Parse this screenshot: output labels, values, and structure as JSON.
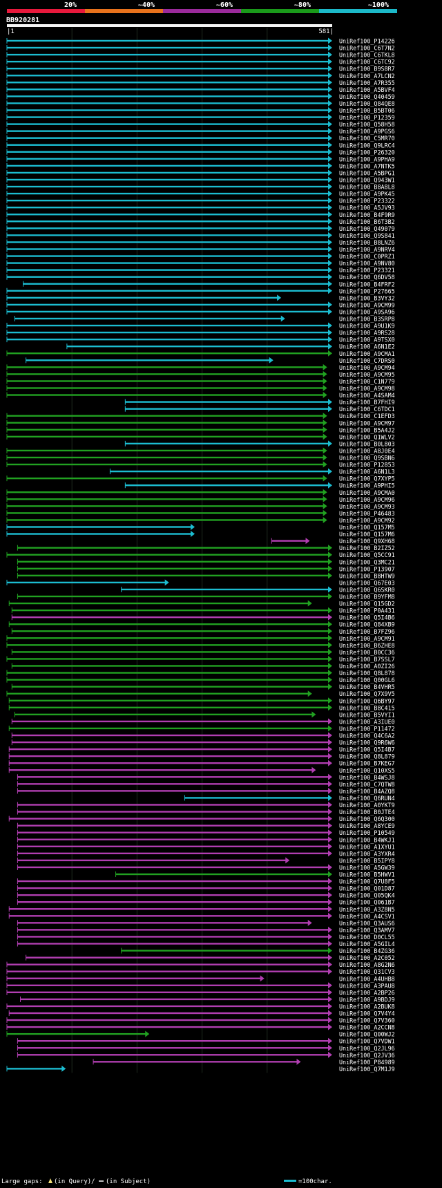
{
  "chart_data": {
    "type": "alignment_overview",
    "query_name": "BB920281",
    "query_start": 1,
    "query_end": 581,
    "ruler_start_label": "1",
    "ruler_end_label": "581",
    "identity_legend": [
      {
        "label": "20%",
        "color": "#e8193c"
      },
      {
        "label": "~40%",
        "color": "#e8721c"
      },
      {
        "label": "~60%",
        "color": "#9b2a9b"
      },
      {
        "label": "~80%",
        "color": "#1a9a1a"
      },
      {
        "label": "~100%",
        "color": "#1cb9c9"
      }
    ],
    "class_colors": {
      "c": "#1cbcd0",
      "g": "#21a121",
      "m": "#b13eb1"
    },
    "footer": {
      "gaps_text": "Large gaps: ",
      "query_gap_text": "(in Query)/",
      "subject_gap_text": "(in Subject)",
      "scale_text": "=100char."
    },
    "hits": [
      {
        "id": "UniRef100_P14226",
        "c": "c",
        "s": 1,
        "e": 581
      },
      {
        "id": "UniRef100_C6T7N2",
        "c": "c",
        "s": 1,
        "e": 581
      },
      {
        "id": "UniRef100_C6TKL8",
        "c": "c",
        "s": 1,
        "e": 581
      },
      {
        "id": "UniRef100_C6TC92",
        "c": "c",
        "s": 1,
        "e": 581
      },
      {
        "id": "UniRef100_B9S8R7",
        "c": "c",
        "s": 1,
        "e": 581
      },
      {
        "id": "UniRef100_A7LCN2",
        "c": "c",
        "s": 1,
        "e": 581
      },
      {
        "id": "UniRef100_A7R355",
        "c": "c",
        "s": 1,
        "e": 581
      },
      {
        "id": "UniRef100_A5BVF4",
        "c": "c",
        "s": 1,
        "e": 581
      },
      {
        "id": "UniRef100_Q40459",
        "c": "c",
        "s": 1,
        "e": 581
      },
      {
        "id": "UniRef100_Q84QE8",
        "c": "c",
        "s": 1,
        "e": 581
      },
      {
        "id": "UniRef100_B5BT06",
        "c": "c",
        "s": 1,
        "e": 581
      },
      {
        "id": "UniRef100_P12359",
        "c": "c",
        "s": 1,
        "e": 581
      },
      {
        "id": "UniRef100_Q58H58",
        "c": "c",
        "s": 1,
        "e": 581
      },
      {
        "id": "UniRef100_A9PGS6",
        "c": "c",
        "s": 1,
        "e": 581
      },
      {
        "id": "UniRef100_C5MR70",
        "c": "c",
        "s": 1,
        "e": 581
      },
      {
        "id": "UniRef100_Q9LRC4",
        "c": "c",
        "s": 1,
        "e": 581
      },
      {
        "id": "UniRef100_P26320",
        "c": "c",
        "s": 1,
        "e": 581
      },
      {
        "id": "UniRef100_A9PHA9",
        "c": "c",
        "s": 1,
        "e": 581
      },
      {
        "id": "UniRef100_A7NTK5",
        "c": "c",
        "s": 1,
        "e": 581
      },
      {
        "id": "UniRef100_A5BPG1",
        "c": "c",
        "s": 1,
        "e": 581
      },
      {
        "id": "UniRef100_Q943W1",
        "c": "c",
        "s": 1,
        "e": 581
      },
      {
        "id": "UniRef100_B8A8L8",
        "c": "c",
        "s": 1,
        "e": 581
      },
      {
        "id": "UniRef100_A9PK45",
        "c": "c",
        "s": 1,
        "e": 581
      },
      {
        "id": "UniRef100_P23322",
        "c": "c",
        "s": 1,
        "e": 581
      },
      {
        "id": "UniRef100_A5JV93",
        "c": "c",
        "s": 1,
        "e": 581
      },
      {
        "id": "UniRef100_B4F9R9",
        "c": "c",
        "s": 1,
        "e": 581
      },
      {
        "id": "UniRef100_B6T3B2",
        "c": "c",
        "s": 1,
        "e": 581
      },
      {
        "id": "UniRef100_Q49079",
        "c": "c",
        "s": 1,
        "e": 581
      },
      {
        "id": "UniRef100_Q9S841",
        "c": "c",
        "s": 1,
        "e": 581
      },
      {
        "id": "UniRef100_B8LNZ6",
        "c": "c",
        "s": 1,
        "e": 581
      },
      {
        "id": "UniRef100_A9NRV4",
        "c": "c",
        "s": 1,
        "e": 581
      },
      {
        "id": "UniRef100_C0PRZ1",
        "c": "c",
        "s": 1,
        "e": 581
      },
      {
        "id": "UniRef100_A9NV80",
        "c": "c",
        "s": 1,
        "e": 581
      },
      {
        "id": "UniRef100_P23321",
        "c": "c",
        "s": 1,
        "e": 581
      },
      {
        "id": "UniRef100_Q6DV58",
        "c": "c",
        "s": 1,
        "e": 581
      },
      {
        "id": "UniRef100_B4FRF2",
        "c": "c",
        "s": 30,
        "e": 581
      },
      {
        "id": "UniRef100_P27665",
        "c": "c",
        "s": 1,
        "e": 581
      },
      {
        "id": "UniRef100_B3VY32",
        "c": "c",
        "s": 1,
        "e": 490
      },
      {
        "id": "UniRef100_A9CM99",
        "c": "c",
        "s": 1,
        "e": 581
      },
      {
        "id": "UniRef100_A9SA96",
        "c": "c",
        "s": 1,
        "e": 581
      },
      {
        "id": "UniRef100_B3SRP8",
        "c": "c",
        "s": 15,
        "e": 497
      },
      {
        "id": "UniRef100_A9U1K9",
        "c": "c",
        "s": 1,
        "e": 581
      },
      {
        "id": "UniRef100_A9RS28",
        "c": "c",
        "s": 1,
        "e": 581
      },
      {
        "id": "UniRef100_A9TSX0",
        "c": "c",
        "s": 1,
        "e": 581
      },
      {
        "id": "UniRef100_A6N1E2",
        "c": "c",
        "s": 108,
        "e": 581
      },
      {
        "id": "UniRef100_A9CMA1",
        "c": "g",
        "s": 1,
        "e": 581
      },
      {
        "id": "UniRef100_C7DRS0",
        "c": "c",
        "s": 35,
        "e": 476
      },
      {
        "id": "UniRef100_A9CM94",
        "c": "g",
        "s": 1,
        "e": 572
      },
      {
        "id": "UniRef100_A9CM95",
        "c": "g",
        "s": 1,
        "e": 572
      },
      {
        "id": "UniRef100_C1N779",
        "c": "g",
        "s": 1,
        "e": 572
      },
      {
        "id": "UniRef100_A9CM98",
        "c": "g",
        "s": 1,
        "e": 572
      },
      {
        "id": "UniRef100_A4SAM4",
        "c": "g",
        "s": 1,
        "e": 572
      },
      {
        "id": "UniRef100_B7FHI9",
        "c": "c",
        "s": 212,
        "e": 581
      },
      {
        "id": "UniRef100_C6TDC1",
        "c": "c",
        "s": 212,
        "e": 581
      },
      {
        "id": "UniRef100_C1EFD3",
        "c": "g",
        "s": 1,
        "e": 572
      },
      {
        "id": "UniRef100_A9CM97",
        "c": "g",
        "s": 1,
        "e": 572
      },
      {
        "id": "UniRef100_B5A4J2",
        "c": "g",
        "s": 1,
        "e": 572
      },
      {
        "id": "UniRef100_Q1WLV2",
        "c": "g",
        "s": 1,
        "e": 572
      },
      {
        "id": "UniRef100_B0L803",
        "c": "c",
        "s": 212,
        "e": 581
      },
      {
        "id": "UniRef100_A8J0E4",
        "c": "g",
        "s": 1,
        "e": 572
      },
      {
        "id": "UniRef100_Q9SBN6",
        "c": "g",
        "s": 1,
        "e": 572
      },
      {
        "id": "UniRef100_P12853",
        "c": "g",
        "s": 1,
        "e": 572
      },
      {
        "id": "UniRef100_A6N1L3",
        "c": "c",
        "s": 185,
        "e": 581
      },
      {
        "id": "UniRef100_Q7XYP5",
        "c": "g",
        "s": 1,
        "e": 572
      },
      {
        "id": "UniRef100_A9PHI5",
        "c": "c",
        "s": 212,
        "e": 581
      },
      {
        "id": "UniRef100_A9CMA0",
        "c": "g",
        "s": 1,
        "e": 572
      },
      {
        "id": "UniRef100_A9CM96",
        "c": "g",
        "s": 1,
        "e": 572
      },
      {
        "id": "UniRef100_A9CM93",
        "c": "g",
        "s": 1,
        "e": 572
      },
      {
        "id": "UniRef100_P46483",
        "c": "g",
        "s": 1,
        "e": 572
      },
      {
        "id": "UniRef100_A9CM92",
        "c": "g",
        "s": 1,
        "e": 572
      },
      {
        "id": "UniRef100_Q157M5",
        "c": "c",
        "s": 1,
        "e": 336
      },
      {
        "id": "UniRef100_Q157M6",
        "c": "c",
        "s": 1,
        "e": 336
      },
      {
        "id": "UniRef100_Q9XH68",
        "c": "m",
        "s": 473,
        "e": 541
      },
      {
        "id": "UniRef100_B2IZ52",
        "c": "g",
        "s": 20,
        "e": 581
      },
      {
        "id": "UniRef100_Q5CC91",
        "c": "g",
        "s": 1,
        "e": 581
      },
      {
        "id": "UniRef100_Q3MC21",
        "c": "g",
        "s": 20,
        "e": 581
      },
      {
        "id": "UniRef100_P13907",
        "c": "g",
        "s": 20,
        "e": 581
      },
      {
        "id": "UniRef100_B8HTW9",
        "c": "g",
        "s": 20,
        "e": 581
      },
      {
        "id": "UniRef100_Q67E03",
        "c": "c",
        "s": 1,
        "e": 290
      },
      {
        "id": "UniRef100_Q6SKR0",
        "c": "c",
        "s": 205,
        "e": 581
      },
      {
        "id": "UniRef100_B9YFM8",
        "c": "g",
        "s": 20,
        "e": 581
      },
      {
        "id": "UniRef100_Q15GD2",
        "c": "g",
        "s": 5,
        "e": 545
      },
      {
        "id": "UniRef100_P0A431",
        "c": "g",
        "s": 10,
        "e": 581
      },
      {
        "id": "UniRef100_Q5I4B6",
        "c": "m",
        "s": 10,
        "e": 581
      },
      {
        "id": "UniRef100_Q84XB9",
        "c": "g",
        "s": 5,
        "e": 581
      },
      {
        "id": "UniRef100_B7FZ96",
        "c": "g",
        "s": 10,
        "e": 581
      },
      {
        "id": "UniRef100_A9CM91",
        "c": "g",
        "s": 1,
        "e": 581
      },
      {
        "id": "UniRef100_B6ZHE8",
        "c": "g",
        "s": 1,
        "e": 581
      },
      {
        "id": "UniRef100_B0CC36",
        "c": "g",
        "s": 10,
        "e": 581
      },
      {
        "id": "UniRef100_B7SSL7",
        "c": "g",
        "s": 1,
        "e": 581
      },
      {
        "id": "UniRef100_A0ZI26",
        "c": "g",
        "s": 10,
        "e": 581
      },
      {
        "id": "UniRef100_Q8L878",
        "c": "g",
        "s": 1,
        "e": 581
      },
      {
        "id": "UniRef100_Q00GL6",
        "c": "g",
        "s": 1,
        "e": 581
      },
      {
        "id": "UniRef100_B4VHR5",
        "c": "g",
        "s": 10,
        "e": 581
      },
      {
        "id": "UniRef100_Q7X9V5",
        "c": "g",
        "s": 1,
        "e": 545
      },
      {
        "id": "UniRef100_Q6BY97",
        "c": "g",
        "s": 5,
        "e": 581
      },
      {
        "id": "UniRef100_B8C415",
        "c": "g",
        "s": 5,
        "e": 581
      },
      {
        "id": "UniRef100_B5VYI1",
        "c": "g",
        "s": 15,
        "e": 552
      },
      {
        "id": "UniRef100_A3IUE0",
        "c": "m",
        "s": 10,
        "e": 581
      },
      {
        "id": "UniRef100_P11472",
        "c": "g",
        "s": 5,
        "e": 581
      },
      {
        "id": "UniRef100_Q4C6A2",
        "c": "m",
        "s": 10,
        "e": 581
      },
      {
        "id": "UniRef100_Q9R6W6",
        "c": "m",
        "s": 10,
        "e": 581
      },
      {
        "id": "UniRef100_Q5I4B7",
        "c": "m",
        "s": 5,
        "e": 581
      },
      {
        "id": "UniRef100_Q8L879",
        "c": "m",
        "s": 5,
        "e": 581
      },
      {
        "id": "UniRef100_B7KEG7",
        "c": "m",
        "s": 5,
        "e": 581
      },
      {
        "id": "UniRef100_Q10XS5",
        "c": "m",
        "s": 5,
        "e": 552
      },
      {
        "id": "UniRef100_B4WSJ8",
        "c": "m",
        "s": 20,
        "e": 581
      },
      {
        "id": "UniRef100_C7QTW8",
        "c": "m",
        "s": 20,
        "e": 581
      },
      {
        "id": "UniRef100_B4AZQ8",
        "c": "m",
        "s": 20,
        "e": 581
      },
      {
        "id": "UniRef100_Q6RUN4",
        "c": "c",
        "s": 318,
        "e": 581
      },
      {
        "id": "UniRef100_A0YKT9",
        "c": "m",
        "s": 20,
        "e": 581
      },
      {
        "id": "UniRef100_B0JTE4",
        "c": "m",
        "s": 20,
        "e": 581
      },
      {
        "id": "UniRef100_Q6Q300",
        "c": "m",
        "s": 5,
        "e": 581
      },
      {
        "id": "UniRef100_A8YCE9",
        "c": "m",
        "s": 20,
        "e": 581
      },
      {
        "id": "UniRef100_P10549",
        "c": "m",
        "s": 20,
        "e": 581
      },
      {
        "id": "UniRef100_B4WKJ1",
        "c": "m",
        "s": 20,
        "e": 581
      },
      {
        "id": "UniRef100_A1XYU1",
        "c": "m",
        "s": 20,
        "e": 581
      },
      {
        "id": "UniRef100_A3YXR4",
        "c": "m",
        "s": 20,
        "e": 581
      },
      {
        "id": "UniRef100_B5IPY8",
        "c": "m",
        "s": 20,
        "e": 505
      },
      {
        "id": "UniRef100_A5GW39",
        "c": "m",
        "s": 20,
        "e": 581
      },
      {
        "id": "UniRef100_B5HWV1",
        "c": "g",
        "s": 195,
        "e": 581
      },
      {
        "id": "UniRef100_Q7U8F5",
        "c": "m",
        "s": 20,
        "e": 581
      },
      {
        "id": "UniRef100_Q01D87",
        "c": "m",
        "s": 20,
        "e": 581
      },
      {
        "id": "UniRef100_Q05QK4",
        "c": "m",
        "s": 20,
        "e": 581
      },
      {
        "id": "UniRef100_Q061B7",
        "c": "m",
        "s": 20,
        "e": 581
      },
      {
        "id": "UniRef100_A3Z8N5",
        "c": "m",
        "s": 5,
        "e": 581
      },
      {
        "id": "UniRef100_A4CSV1",
        "c": "m",
        "s": 5,
        "e": 581
      },
      {
        "id": "UniRef100_Q3AUS6",
        "c": "m",
        "s": 20,
        "e": 545
      },
      {
        "id": "UniRef100_Q3AMV7",
        "c": "m",
        "s": 20,
        "e": 581
      },
      {
        "id": "UniRef100_D0CL55",
        "c": "m",
        "s": 20,
        "e": 581
      },
      {
        "id": "UniRef100_A5GIL4",
        "c": "m",
        "s": 20,
        "e": 581
      },
      {
        "id": "UniRef100_B4ZG36",
        "c": "g",
        "s": 205,
        "e": 581
      },
      {
        "id": "UniRef100_A2C052",
        "c": "m",
        "s": 35,
        "e": 581
      },
      {
        "id": "UniRef100_A8G2N6",
        "c": "m",
        "s": 1,
        "e": 581
      },
      {
        "id": "UniRef100_Q31CV3",
        "c": "m",
        "s": 1,
        "e": 581
      },
      {
        "id": "UniRef100_A4UHB8",
        "c": "m",
        "s": 1,
        "e": 460
      },
      {
        "id": "UniRef100_A3PAU8",
        "c": "m",
        "s": 1,
        "e": 581
      },
      {
        "id": "UniRef100_A2BP26",
        "c": "m",
        "s": 1,
        "e": 581
      },
      {
        "id": "UniRef100_A9BDJ9",
        "c": "m",
        "s": 25,
        "e": 581
      },
      {
        "id": "UniRef100_A2BUK8",
        "c": "m",
        "s": 1,
        "e": 581
      },
      {
        "id": "UniRef100_Q7V4Y4",
        "c": "m",
        "s": 5,
        "e": 581
      },
      {
        "id": "UniRef100_Q7V360",
        "c": "m",
        "s": 1,
        "e": 581
      },
      {
        "id": "UniRef100_A2CCN8",
        "c": "m",
        "s": 1,
        "e": 581
      },
      {
        "id": "UniRef100_Q00WJ2",
        "c": "g",
        "s": 1,
        "e": 255
      },
      {
        "id": "UniRef100_Q7VDW1",
        "c": "m",
        "s": 20,
        "e": 581
      },
      {
        "id": "UniRef100_Q2JL96",
        "c": "m",
        "s": 20,
        "e": 581
      },
      {
        "id": "UniRef100_Q2JV36",
        "c": "m",
        "s": 20,
        "e": 581
      },
      {
        "id": "UniRef100_P84989",
        "c": "m",
        "s": 155,
        "e": 525
      },
      {
        "id": "UniRef100_Q7M1J9",
        "c": "c",
        "s": 1,
        "e": 106
      }
    ]
  }
}
